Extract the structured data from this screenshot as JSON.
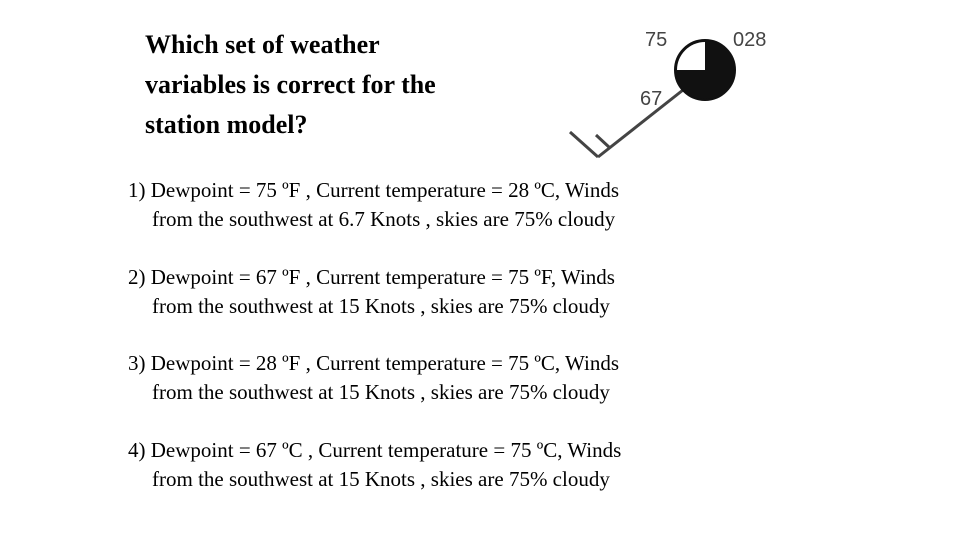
{
  "question": {
    "lines": [
      "Which set of weather",
      "variables is correct for the",
      "station model?"
    ]
  },
  "station_model": {
    "temperature": "75",
    "pressure": "028",
    "dewpoint": "67"
  },
  "options": [
    {
      "lines": [
        "1) Dewpoint = 75 ºF , Current temperature = 28 ºC, Winds",
        "from the southwest at 6.7 Knots , skies are 75% cloudy"
      ]
    },
    {
      "lines": [
        "2) Dewpoint = 67 ºF , Current temperature = 75 ºF, Winds",
        "from the southwest at 15 Knots , skies are 75% cloudy"
      ]
    },
    {
      "lines": [
        "3) Dewpoint = 28 ºF , Current temperature = 75 ºC, Winds",
        "from the southwest at 15 Knots , skies are 75% cloudy"
      ]
    },
    {
      "lines": [
        "4) Dewpoint = 67 ºC , Current temperature = 75 ºC, Winds",
        "from the southwest at 15 Knots , skies are 75% cloudy"
      ]
    }
  ]
}
